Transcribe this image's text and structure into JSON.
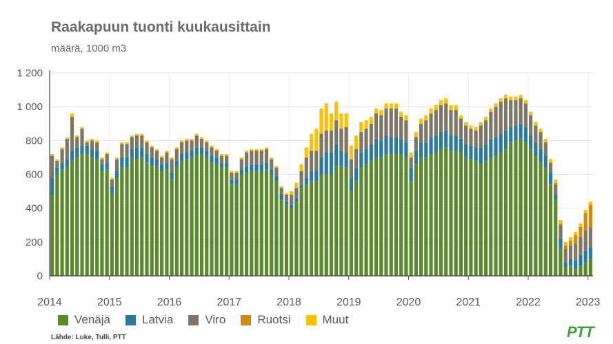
{
  "title": "Raakapuun tuonti kuukausittain",
  "subtitle": "määrä, 1000 m3",
  "source": "Lähde: Luke, Tulli, PTT",
  "logo": "PTT",
  "chart_data": {
    "type": "bar",
    "stacked": true,
    "title": "Raakapuun tuonti kuukausittain",
    "subtitle": "määrä, 1000 m3",
    "ylim": [
      0,
      1200
    ],
    "yticks": [
      0,
      200,
      400,
      600,
      800,
      1000,
      1200
    ],
    "ytick_labels": [
      "0",
      "200",
      "400",
      "600",
      "800",
      "1 000",
      "1 200"
    ],
    "xtick_labels": [
      "2014",
      "2015",
      "2016",
      "2017",
      "2018",
      "2019",
      "2020",
      "2021",
      "2022",
      "2023"
    ],
    "start_period": "2014-01",
    "months": 109,
    "grid": true,
    "legend_position": "bottom",
    "series": [
      {
        "name": "Venäjä",
        "color": "#5b8a2c",
        "values": [
          480,
          600,
          630,
          640,
          680,
          700,
          720,
          720,
          700,
          690,
          620,
          630,
          490,
          580,
          640,
          640,
          700,
          690,
          700,
          670,
          650,
          650,
          620,
          630,
          570,
          640,
          680,
          690,
          700,
          720,
          720,
          700,
          670,
          660,
          640,
          640,
          540,
          540,
          600,
          610,
          620,
          620,
          620,
          630,
          600,
          560,
          450,
          420,
          400,
          440,
          520,
          540,
          560,
          560,
          600,
          600,
          600,
          650,
          650,
          640,
          500,
          560,
          640,
          660,
          680,
          700,
          700,
          720,
          720,
          720,
          720,
          700,
          560,
          660,
          700,
          700,
          720,
          730,
          750,
          760,
          740,
          740,
          730,
          700,
          690,
          680,
          660,
          680,
          700,
          710,
          730,
          750,
          790,
          800,
          810,
          790,
          750,
          710,
          670,
          640,
          540,
          450,
          160,
          50,
          60,
          40,
          60,
          80,
          100
        ]
      },
      {
        "name": "Latvia",
        "color": "#2b7a9b",
        "values": [
          100,
          40,
          40,
          50,
          60,
          60,
          50,
          50,
          50,
          50,
          40,
          40,
          40,
          40,
          60,
          60,
          50,
          70,
          60,
          50,
          50,
          40,
          40,
          40,
          40,
          40,
          40,
          40,
          40,
          40,
          40,
          40,
          40,
          40,
          30,
          30,
          30,
          30,
          30,
          40,
          40,
          40,
          40,
          40,
          30,
          30,
          30,
          20,
          20,
          20,
          20,
          40,
          60,
          60,
          100,
          130,
          130,
          130,
          90,
          90,
          80,
          80,
          90,
          90,
          100,
          110,
          100,
          110,
          100,
          100,
          90,
          90,
          80,
          80,
          90,
          90,
          100,
          100,
          100,
          100,
          90,
          90,
          80,
          80,
          80,
          80,
          100,
          100,
          110,
          110,
          110,
          110,
          90,
          90,
          90,
          90,
          80,
          80,
          80,
          70,
          70,
          30,
          60,
          30,
          40,
          50,
          60,
          70,
          70
        ]
      },
      {
        "name": "Viro",
        "color": "#7f7766",
        "values": [
          130,
          40,
          80,
          120,
          200,
          60,
          100,
          20,
          50,
          50,
          30,
          50,
          40,
          70,
          80,
          80,
          70,
          70,
          70,
          70,
          60,
          50,
          40,
          60,
          80,
          70,
          70,
          70,
          60,
          70,
          50,
          50,
          50,
          40,
          40,
          40,
          40,
          40,
          60,
          80,
          80,
          80,
          80,
          80,
          60,
          50,
          40,
          40,
          60,
          60,
          80,
          120,
          120,
          120,
          140,
          130,
          130,
          140,
          130,
          150,
          110,
          110,
          120,
          120,
          120,
          150,
          150,
          160,
          170,
          170,
          130,
          130,
          60,
          80,
          110,
          130,
          140,
          150,
          160,
          160,
          150,
          150,
          120,
          110,
          100,
          100,
          130,
          140,
          160,
          180,
          190,
          190,
          160,
          150,
          150,
          140,
          120,
          100,
          100,
          80,
          60,
          60,
          80,
          80,
          80,
          100,
          110,
          120,
          120
        ]
      },
      {
        "name": "Ruotsi",
        "color": "#d08a10",
        "values": [
          0,
          0,
          0,
          0,
          0,
          0,
          0,
          0,
          0,
          0,
          0,
          0,
          0,
          0,
          0,
          0,
          0,
          0,
          0,
          0,
          0,
          0,
          0,
          0,
          0,
          0,
          0,
          0,
          0,
          0,
          0,
          0,
          0,
          0,
          0,
          0,
          0,
          0,
          0,
          0,
          0,
          0,
          0,
          0,
          0,
          0,
          0,
          0,
          0,
          0,
          0,
          0,
          0,
          0,
          0,
          0,
          0,
          0,
          0,
          0,
          0,
          0,
          0,
          0,
          0,
          0,
          0,
          0,
          0,
          0,
          0,
          0,
          0,
          0,
          0,
          0,
          0,
          0,
          0,
          0,
          0,
          0,
          0,
          0,
          0,
          0,
          0,
          0,
          0,
          0,
          0,
          0,
          0,
          0,
          0,
          0,
          0,
          0,
          0,
          0,
          0,
          10,
          10,
          20,
          30,
          50,
          60,
          100,
          130
        ]
      },
      {
        "name": "Muut",
        "color": "#ffc000",
        "values": [
          10,
          10,
          10,
          10,
          20,
          10,
          10,
          10,
          10,
          10,
          10,
          10,
          10,
          10,
          10,
          10,
          10,
          10,
          10,
          10,
          10,
          10,
          10,
          10,
          10,
          10,
          10,
          10,
          10,
          10,
          10,
          10,
          10,
          10,
          10,
          10,
          10,
          10,
          10,
          10,
          10,
          10,
          10,
          10,
          10,
          10,
          10,
          10,
          20,
          30,
          40,
          60,
          100,
          130,
          150,
          160,
          100,
          110,
          90,
          80,
          80,
          80,
          60,
          50,
          40,
          30,
          30,
          30,
          30,
          30,
          30,
          30,
          30,
          30,
          30,
          30,
          30,
          30,
          30,
          30,
          30,
          30,
          20,
          20,
          20,
          20,
          20,
          20,
          20,
          20,
          20,
          20,
          20,
          20,
          20,
          20,
          20,
          20,
          20,
          20,
          20,
          20,
          20,
          20,
          20,
          20,
          20,
          20,
          20
        ]
      }
    ]
  }
}
